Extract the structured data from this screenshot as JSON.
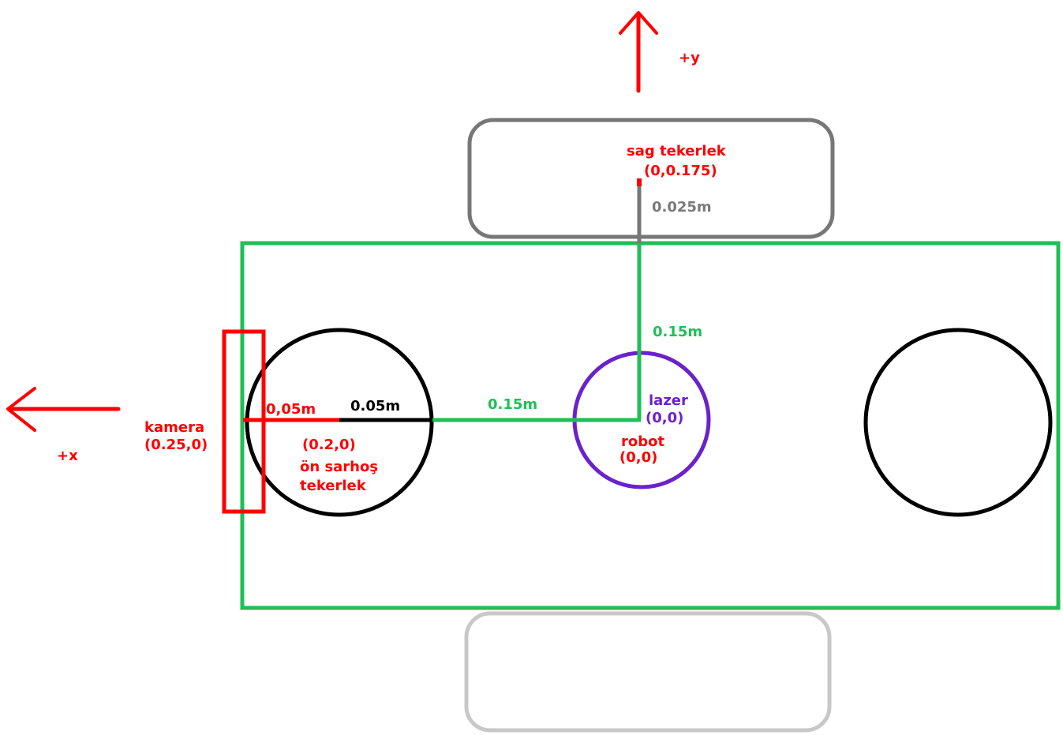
{
  "colors": {
    "red": "#ff0000",
    "green": "#1fbf55",
    "gray": "#777777",
    "light_gray": "#c8c8c8",
    "black": "#000000",
    "purple": "#6a22cc"
  },
  "axes": {
    "plus_y": "+y",
    "plus_x": "+x"
  },
  "right_wheel": {
    "name": "sag tekerlek",
    "coord": "(0,0.175)",
    "offset": "0.025m"
  },
  "body_dims": {
    "vertical": "0.15m",
    "horizontal": "0.15m"
  },
  "laser": {
    "name": "lazer",
    "coord": "(0,0)"
  },
  "robot": {
    "name": "robot",
    "coord": "(0,0)"
  },
  "camera": {
    "name": "kamera",
    "coord": "(0.25,0)",
    "offset": "0,05m"
  },
  "caster": {
    "radius": "0.05m",
    "coord": "(0.2,0)",
    "name_line1": "ön sarhoş",
    "name_line2": "tekerlek"
  }
}
